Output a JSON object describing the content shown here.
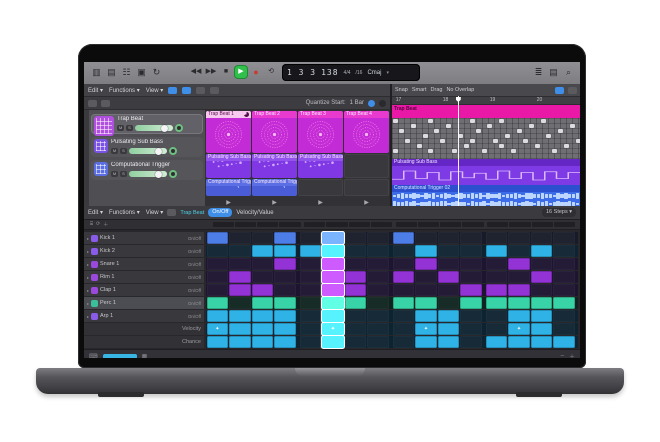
{
  "colors": {
    "loop_magenta_body": "#c междун",
    "blue_cell": "#4d7ee8",
    "cyan_cell": "#2fb3e6",
    "purple_cell": "#9333d6",
    "teal_cell": "#38d3a6",
    "accent_blue": "#3f8fe8",
    "region_magenta": "#ea18a6",
    "region_purple": "#7e3ae4",
    "region_blue": "#3d6ce8"
  },
  "toolbar": {
    "left_icons": [
      "library-icon",
      "inspector-icon",
      "smart-controls-icon",
      "mixer-icon",
      "loop-browser-icon"
    ],
    "transport": {
      "rewind": "◀◀",
      "forward": "▶▶",
      "stop": "■",
      "play": "▶",
      "record": "●",
      "cycle": "⟲"
    },
    "lcd": {
      "position": "1 3 3",
      "tempo": "138",
      "time_sig": "4/4",
      "division": "/16",
      "key": "Cmaj",
      "caret": "▾"
    },
    "right_icons": [
      "list-editors-icon",
      "note-pads-icon",
      "browsers-icon"
    ]
  },
  "loops_header": {
    "menus": [
      "Edit",
      "Functions",
      "View"
    ],
    "quantize_label": "Quantize Start:",
    "quantize_value": "1 Bar"
  },
  "tracks": [
    {
      "name": "Trap Beat",
      "icon_color": "#b14fe0",
      "icon_size": 20,
      "selected": true
    },
    {
      "name": "Pulsating Sub Bass",
      "icon_color": "#7a52e8",
      "icon_size": 14,
      "selected": false
    },
    {
      "name": "Computational Trigger",
      "icon_color": "#5b6ee4",
      "icon_size": 14,
      "selected": false
    }
  ],
  "loop_grid": {
    "rows": [
      {
        "style": "magenta",
        "art": "mandala",
        "body": "#c32bd6",
        "hdr": "#e93ad0",
        "cells": [
          {
            "label": "Trap Beat 1",
            "playing": true
          },
          {
            "label": "Trap Beat 2"
          },
          {
            "label": "Trap Beat 3"
          },
          {
            "label": "Trap Beat 4"
          },
          null
        ]
      },
      {
        "style": "violet",
        "art": "scatter",
        "body": "#8038e4",
        "hdr": "#9354ec",
        "cells": [
          {
            "label": "Pulsating Sub Bass 01"
          },
          {
            "label": "Pulsating Sub Bass 02"
          },
          {
            "label": "Pulsating Sub Bass 03"
          },
          null
        ]
      },
      {
        "style": "blue",
        "art": "dots",
        "body": "#4a5cd8",
        "hdr": "#5b6ee4",
        "cells": [
          {
            "label": "Computational Trigger"
          },
          {
            "label": "Computational Trigger"
          },
          null,
          null
        ]
      }
    ],
    "scene_play_glyph": "▶",
    "scenes": [
      "1",
      "2",
      "3",
      "4"
    ]
  },
  "tracks_panel": {
    "snap_label": "Snap",
    "snap_value": "Smart",
    "drag_label": "Drag",
    "drag_value": "No Overlap",
    "ruler_labels": [
      "17",
      "18",
      "19",
      "20"
    ],
    "playhead_pct": 35,
    "regions": [
      {
        "name": "Trap Beat",
        "type": "midi-strip"
      },
      {
        "name": "Pulsating Sub Bass",
        "type": "automation"
      },
      {
        "name": "Computational Trigger 02",
        "type": "audio"
      }
    ],
    "drum_notes": [
      [
        0,
        0
      ],
      [
        0,
        6
      ],
      [
        1,
        2
      ],
      [
        2,
        4
      ],
      [
        3,
        1
      ],
      [
        4,
        5
      ],
      [
        5,
        3
      ],
      [
        6,
        0
      ],
      [
        6,
        6
      ],
      [
        7,
        2
      ],
      [
        8,
        4
      ],
      [
        9,
        1
      ],
      [
        10,
        6
      ],
      [
        11,
        3
      ],
      [
        12,
        5
      ],
      [
        13,
        0
      ],
      [
        13,
        4
      ],
      [
        14,
        2
      ],
      [
        15,
        6
      ],
      [
        16,
        1
      ],
      [
        17,
        4
      ],
      [
        18,
        0
      ],
      [
        18,
        5
      ],
      [
        19,
        3
      ],
      [
        20,
        6
      ],
      [
        21,
        2
      ],
      [
        22,
        4
      ],
      [
        23,
        1
      ],
      [
        24,
        5
      ],
      [
        25,
        0
      ],
      [
        26,
        3
      ],
      [
        27,
        6
      ],
      [
        28,
        2
      ],
      [
        29,
        5
      ],
      [
        30,
        1
      ],
      [
        31,
        4
      ]
    ],
    "automation": [
      0.75,
      0.2,
      0.7,
      0.3,
      0.8,
      0.25,
      0.65,
      0.35,
      0.75,
      0.2,
      0.7,
      0.3,
      0.8,
      0.25,
      0.7,
      0.3
    ],
    "waveform": [
      0.3,
      0.55,
      0.8,
      0.45,
      0.7,
      0.9,
      0.5,
      0.35,
      0.75,
      0.6,
      0.85,
      0.4,
      0.65,
      0.9,
      0.55,
      0.3,
      0.7,
      0.85,
      0.45,
      0.6,
      0.9,
      0.5,
      0.75,
      0.35,
      0.8,
      0.55,
      0.65,
      0.9,
      0.4,
      0.7,
      0.5,
      0.85,
      0.6,
      0.35,
      0.75,
      0.9,
      0.45,
      0.65,
      0.8,
      0.5,
      0.7,
      0.4,
      0.85,
      0.55,
      0.9,
      0.6,
      0.45,
      0.75
    ]
  },
  "sequencer": {
    "menus": [
      "Edit",
      "Functions",
      "View"
    ],
    "region_name": "Trap Beat",
    "mode_on_off": "On/Off",
    "mode_velocity": "Velocity/Value",
    "length_value": "16 Steps ▾",
    "playhead_step": 6,
    "rows": [
      {
        "name": "Kick 1",
        "color": "blue",
        "mode": "On/Off",
        "pattern": [
          1,
          0,
          0,
          1,
          0,
          1,
          0,
          0,
          1,
          0,
          0,
          0,
          0,
          0,
          0,
          0
        ]
      },
      {
        "name": "Kick 2",
        "color": "cyan",
        "mode": "On/Off",
        "pattern": [
          0,
          0,
          1,
          1,
          1,
          1,
          0,
          0,
          0,
          1,
          0,
          0,
          1,
          0,
          1,
          0
        ]
      },
      {
        "name": "Snare 1",
        "color": "purple",
        "mode": "On/Off",
        "pattern": [
          0,
          0,
          0,
          1,
          0,
          1,
          0,
          0,
          0,
          1,
          0,
          0,
          0,
          1,
          0,
          0
        ]
      },
      {
        "name": "Rim 1",
        "color": "purple",
        "mode": "On/Off",
        "pattern": [
          0,
          1,
          0,
          0,
          0,
          1,
          1,
          0,
          1,
          0,
          1,
          0,
          0,
          0,
          1,
          0
        ]
      },
      {
        "name": "Clap 1",
        "color": "purple",
        "mode": "On/Off",
        "pattern": [
          0,
          1,
          1,
          0,
          0,
          1,
          1,
          0,
          0,
          0,
          0,
          1,
          1,
          1,
          0,
          0
        ]
      },
      {
        "name": "Perc 1",
        "color": "teal",
        "mode": "On/Off",
        "selected": true,
        "pattern": [
          1,
          0,
          1,
          1,
          0,
          1,
          1,
          0,
          1,
          1,
          0,
          1,
          1,
          1,
          1,
          1
        ]
      },
      {
        "name": "Arp 1",
        "color": "cyan",
        "mode": "On/Off",
        "pattern": [
          1,
          1,
          1,
          1,
          0,
          1,
          0,
          0,
          0,
          1,
          1,
          0,
          0,
          1,
          1,
          0
        ]
      },
      {
        "name": "Velocity",
        "color": "cyan",
        "sub": true,
        "pattern": [
          2,
          1,
          1,
          1,
          0,
          2,
          0,
          0,
          0,
          2,
          1,
          0,
          0,
          2,
          1,
          0
        ]
      },
      {
        "name": "Chance",
        "color": "cyan",
        "sub": true,
        "pattern": [
          1,
          1,
          1,
          1,
          0,
          1,
          0,
          0,
          0,
          1,
          1,
          0,
          1,
          1,
          1,
          1
        ]
      }
    ],
    "row_icon_colors": {
      "blue": "#8a5ae8",
      "cyan": "#8a5ae8",
      "purple": "#9a49dc",
      "teal": "#3bbf9a"
    },
    "cell_colors": {
      "blue": "#4d7ee8",
      "cyan": "#2fb3e6",
      "purple": "#9333d6",
      "teal": "#38d3a6"
    },
    "row_tints": {
      "blue": "#171a28",
      "cyan": "#0e2331",
      "purple": "#1d1430",
      "teal": "#0f2420"
    },
    "accent_glyph": "✦"
  }
}
